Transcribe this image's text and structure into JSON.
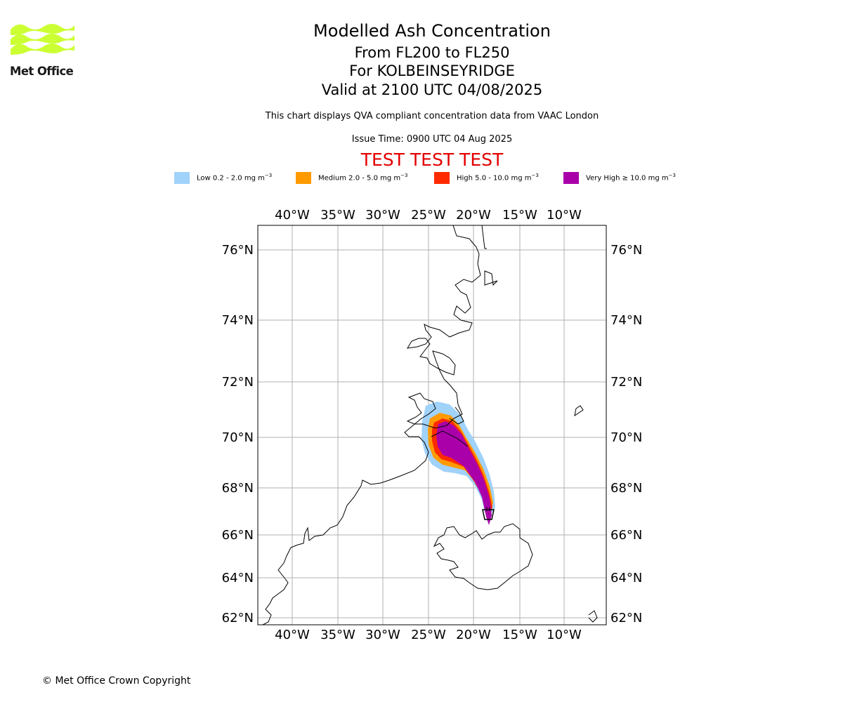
{
  "header": {
    "title": "Modelled Ash Concentration",
    "levels": "From FL200 to FL250",
    "volcano": "For KOLBEINSEYRIDGE",
    "valid": "Valid at 2100 UTC 04/08/2025",
    "description": "This chart displays QVA compliant concentration data from VAAC London",
    "issue_time": "Issue Time: 0900 UTC 04 Aug 2025",
    "test_banner": "TEST TEST TEST"
  },
  "logo": {
    "text": "Met Office",
    "color": "#ccff33",
    "icon": "met-office-waves-icon"
  },
  "legend": [
    {
      "prefix": "Low 0.2 - 2.0 mg m",
      "exp": "−3",
      "color": "#a0d2fa"
    },
    {
      "prefix": "Medium 2.0 - 5.0 mg m",
      "exp": "−3",
      "color": "#ff9a00"
    },
    {
      "prefix": "High 5.0 - 10.0 mg m",
      "exp": "−3",
      "color": "#ff2a00"
    },
    {
      "prefix": "Very High  ≥  10.0 mg m",
      "exp": "−3",
      "color": "#aa00aa"
    }
  ],
  "map": {
    "lon_labels": [
      "40°W",
      "35°W",
      "30°W",
      "25°W",
      "20°W",
      "15°W",
      "10°W"
    ],
    "lat_labels": [
      "76°N",
      "74°N",
      "72°N",
      "70°N",
      "68°N",
      "66°N",
      "64°N",
      "62°N"
    ],
    "volcano_icon": "volcano-icon"
  },
  "footer": {
    "copyright": "© Met Office Crown Copyright"
  }
}
